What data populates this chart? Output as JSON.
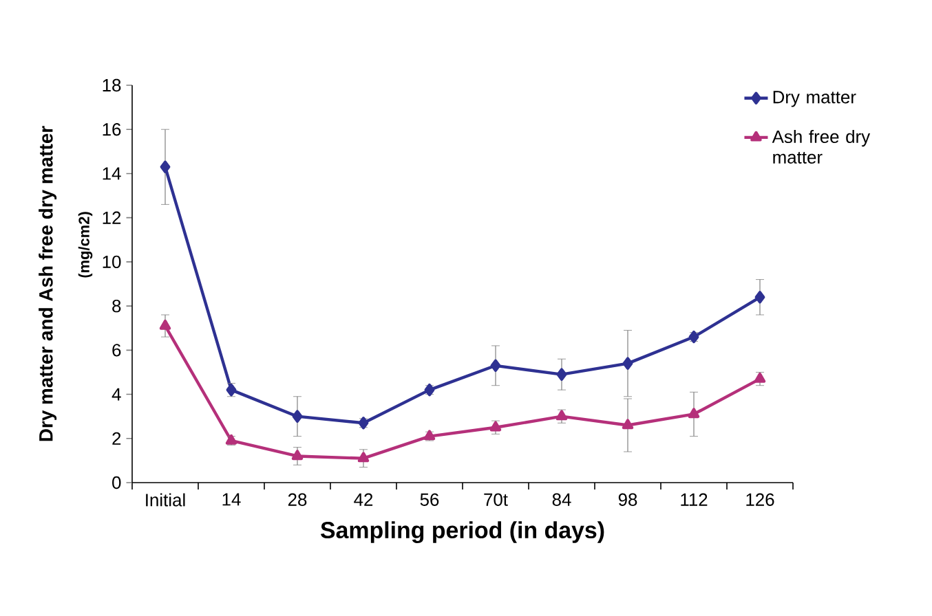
{
  "chart_data": {
    "type": "line",
    "xlabel": "Sampling period (in days)",
    "ylabel": "Dry matter and Ash free dry matter",
    "annotations": [
      "(mg/cm2)"
    ],
    "categories": [
      "Initial",
      "14",
      "28",
      "42",
      "56",
      "70t",
      "84",
      "98",
      "112",
      "126"
    ],
    "series": [
      {
        "name": "Dry  matter",
        "color": "#2e3192",
        "marker": "diamond",
        "values": [
          14.3,
          4.2,
          3.0,
          2.7,
          4.2,
          5.3,
          4.9,
          5.4,
          6.6,
          8.4
        ],
        "errors": [
          1.7,
          0.3,
          0.9,
          0.2,
          0.2,
          0.9,
          0.7,
          1.5,
          0.2,
          0.8
        ]
      },
      {
        "name": "Ash free dry matter",
        "color": "#b5307a",
        "marker": "triangle",
        "values": [
          7.1,
          1.9,
          1.2,
          1.1,
          2.1,
          2.5,
          3.0,
          2.6,
          3.1,
          4.7
        ],
        "errors": [
          0.5,
          0.2,
          0.4,
          0.4,
          0.2,
          0.3,
          0.3,
          1.2,
          1.0,
          0.3
        ]
      }
    ],
    "ylim": [
      0,
      18
    ],
    "yticks": [
      0,
      2,
      4,
      6,
      8,
      10,
      12,
      14,
      16,
      18
    ],
    "legend": "top right",
    "grid": false,
    "line_style": "solid"
  }
}
